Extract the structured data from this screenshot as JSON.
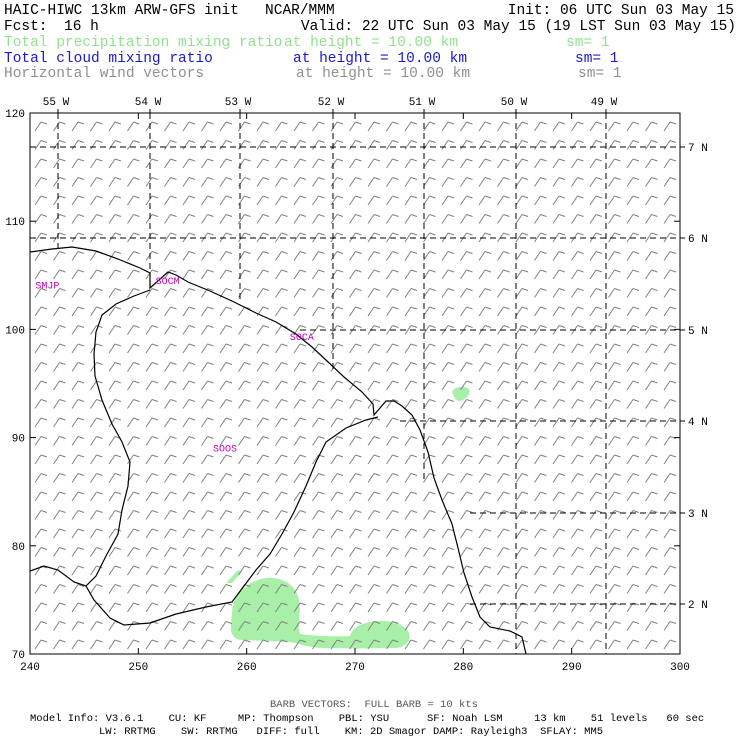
{
  "header": {
    "model_line": "HAIC-HIWC 13km ARW-GFS init   NCAR/MMM",
    "init_line": "Init: 06 UTC Sun 03 May 15",
    "fcst_label": "Fcst:",
    "fcst_value": "16 h",
    "valid_line": "Valid: 22 UTC Sun 03 May 15 (19 LST Sun 03 May 15)"
  },
  "fields": [
    {
      "name": "Total precipitation mixing ratio",
      "level": "at height = 10.00 km",
      "smooth": "sm= 1",
      "color": "#8fe38f"
    },
    {
      "name": "Total cloud mixing ratio",
      "level": "at height = 10.00 km",
      "smooth": "sm= 1",
      "color": "#1a1acc"
    },
    {
      "name": "Horizontal wind vectors",
      "level": "at height = 10.00 km",
      "smooth": "sm= 1",
      "color": "#909090"
    }
  ],
  "axes": {
    "x_ticks": [
      "240",
      "250",
      "260",
      "270",
      "280",
      "290",
      "300"
    ],
    "y_ticks": [
      "70",
      "80",
      "90",
      "100",
      "110",
      "120"
    ],
    "lon_labels": [
      "55 W",
      "54 W",
      "53 W",
      "52 W",
      "51 W",
      "50 W",
      "49 W"
    ],
    "lat_labels": [
      "7 N",
      "6 N",
      "5 N",
      "4 N",
      "3 N",
      "2 N"
    ]
  },
  "stations": [
    {
      "code": "SMJP",
      "x": 241.6,
      "y": 103.8
    },
    {
      "code": "SOCM",
      "x": 252.7,
      "y": 104.2
    },
    {
      "code": "SOCA",
      "x": 265.1,
      "y": 99.0
    },
    {
      "code": "SOOS",
      "x": 258.0,
      "y": 88.7
    }
  ],
  "colors": {
    "precip_fill": "#a8f0a8",
    "coastline": "#000000",
    "station_label": "#c000c0",
    "wind_barb": "#808080"
  },
  "footer": {
    "barb_note": "BARB VECTORS:  FULL BARB = 10 kts",
    "model_info_1": "Model Info: V3.6.1    CU: KF     MP: Thompson    PBL: YSU      SF: Noah LSM     13 km    51 levels   60 sec",
    "model_info_2": "LW: RRTMG    SW: RRTMG   DIFF: full    KM: 2D Smagor DAMP: Rayleigh3  SFLAY: MM5"
  }
}
